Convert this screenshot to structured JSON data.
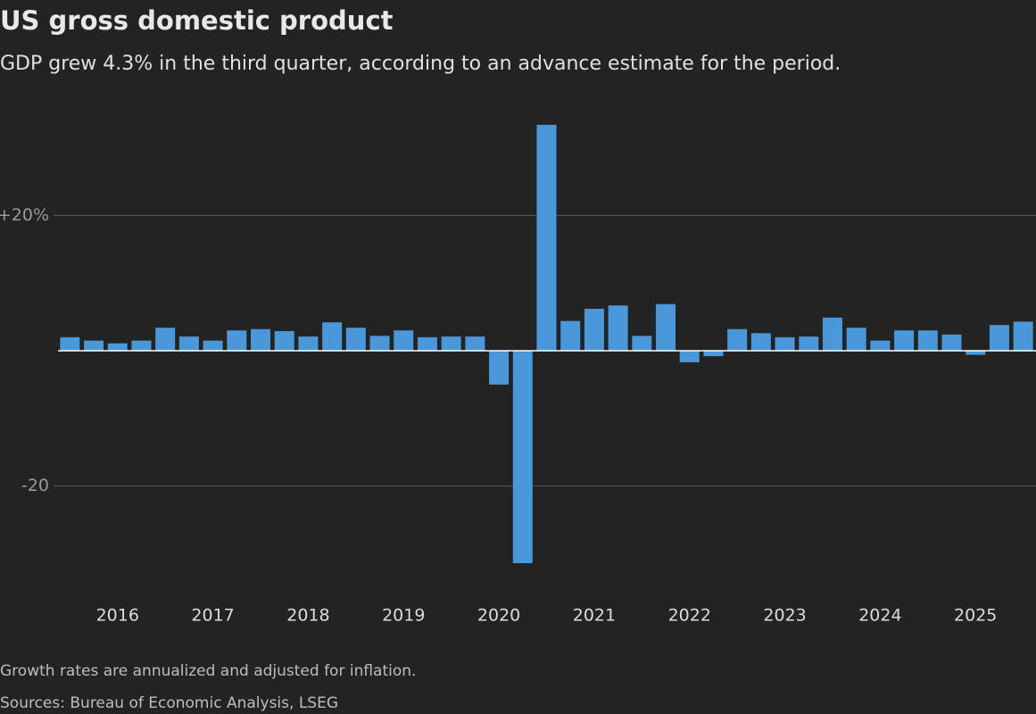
{
  "chart_data": {
    "type": "bar",
    "title": "US gross domestic product",
    "subtitle": "GDP grew 4.3% in the third quarter, according to an advance estimate for the period.",
    "notes": [
      "Growth rates are annualized and adjusted for inflation.",
      "Sources: Bureau of Economic Analysis, LSEG"
    ],
    "categories": [
      null,
      null,
      "2016",
      null,
      null,
      null,
      "2017",
      null,
      null,
      null,
      "2018",
      null,
      null,
      null,
      "2019",
      null,
      null,
      null,
      "2020",
      null,
      null,
      null,
      "2021",
      null,
      null,
      null,
      "2022",
      null,
      null,
      null,
      "2023",
      null,
      null,
      null,
      "2024",
      null,
      null,
      null,
      "2025",
      null,
      null
    ],
    "values": [
      2.0,
      1.5,
      1.1,
      1.5,
      3.4,
      2.1,
      1.5,
      3.0,
      3.2,
      2.9,
      2.1,
      4.2,
      3.4,
      2.2,
      3.0,
      2.0,
      2.1,
      2.1,
      -5.0,
      -31.4,
      33.4,
      4.4,
      6.2,
      6.7,
      2.2,
      6.9,
      -1.7,
      -0.8,
      3.2,
      2.6,
      2.0,
      2.1,
      4.9,
      3.4,
      1.5,
      3.0,
      3.0,
      2.4,
      -0.6,
      3.8,
      4.3
    ],
    "color": "#4a98d9",
    "ylim": [
      -35,
      36
    ],
    "yticks": [
      {
        "value": 20,
        "label": "+20%"
      },
      -20
    ],
    "grid": true
  }
}
